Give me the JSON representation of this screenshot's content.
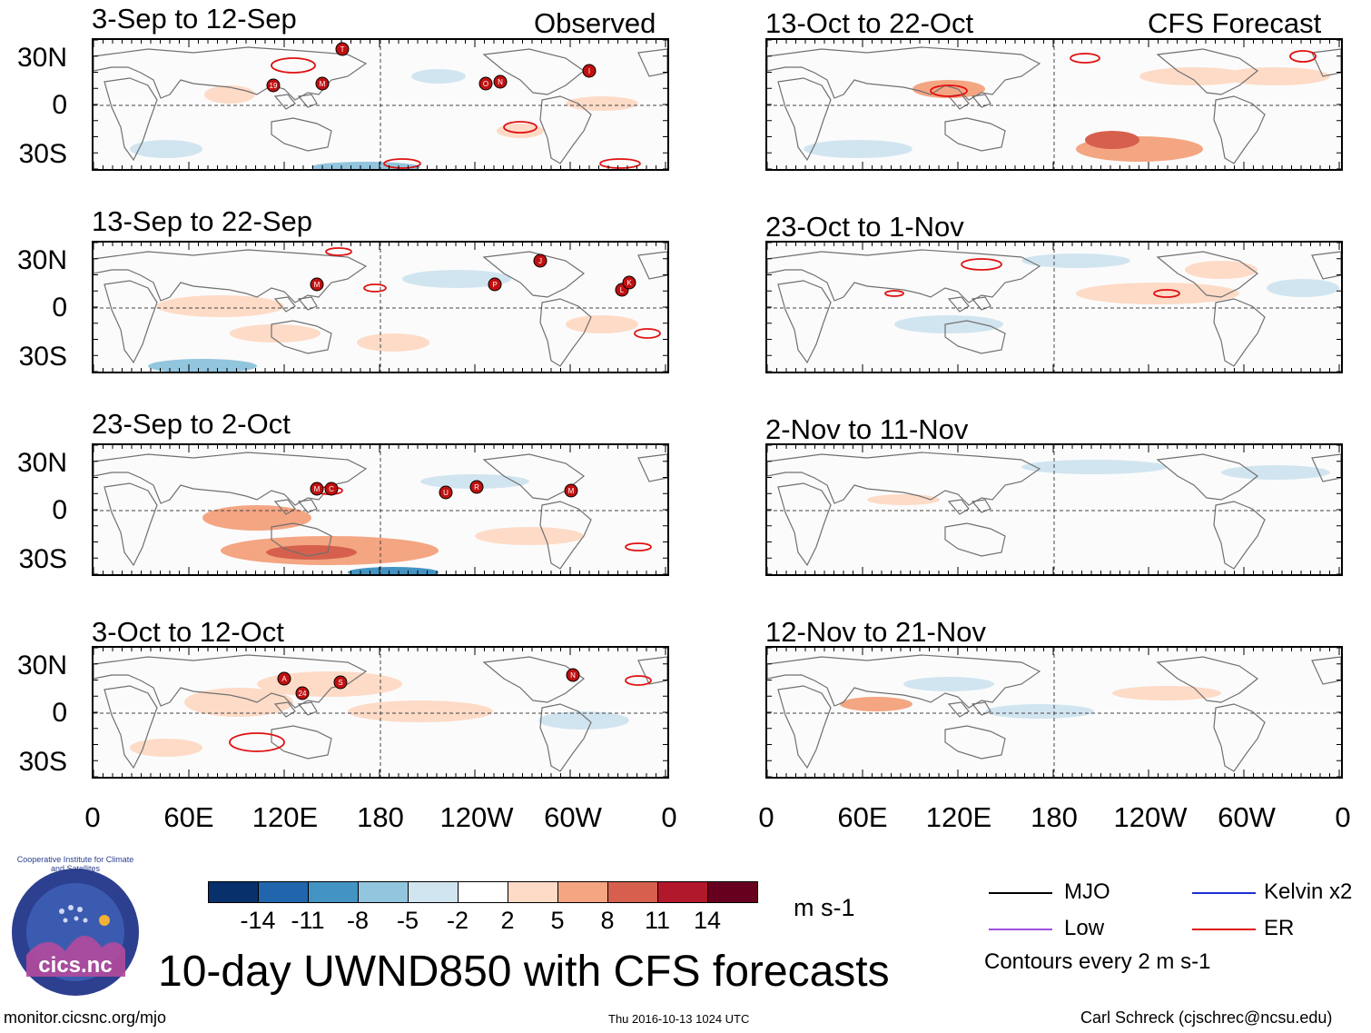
{
  "headers": {
    "observed": "Observed",
    "forecast": "CFS Forecast"
  },
  "panels_left": [
    {
      "title": "3-Sep to 12-Sep"
    },
    {
      "title": "13-Sep to 22-Sep"
    },
    {
      "title": "23-Sep to 2-Oct"
    },
    {
      "title": "3-Oct to 12-Oct"
    }
  ],
  "panels_right": [
    {
      "title": "13-Oct to 22-Oct"
    },
    {
      "title": "23-Oct to 1-Nov"
    },
    {
      "title": "2-Nov to 11-Nov"
    },
    {
      "title": "12-Nov to 21-Nov"
    }
  ],
  "lat_labels": [
    "30N",
    "0",
    "30S"
  ],
  "lon_labels": [
    "0",
    "60E",
    "120E",
    "180",
    "120W",
    "60W",
    "0"
  ],
  "colorbar": {
    "colors": [
      "#08306b",
      "#2166ac",
      "#4393c3",
      "#92c5de",
      "#d1e5f0",
      "#ffffff",
      "#fddbc7",
      "#f4a582",
      "#d6604d",
      "#b2182b",
      "#67001f"
    ],
    "labels": [
      "-14",
      "-11",
      "-8",
      "-5",
      "-2",
      "2",
      "5",
      "8",
      "11",
      "14"
    ],
    "units": "m s-1"
  },
  "legend": {
    "mjo": "MJO",
    "kelvin": "Kelvin x2",
    "low": "Low",
    "er": "ER",
    "contours": "Contours every 2 m s-1",
    "colors": {
      "mjo": "#000000",
      "kelvin": "#1f2fd0",
      "low": "#a050e0",
      "er": "#e01010"
    }
  },
  "title": "10-day UWND850 with CFS forecasts",
  "logo_text": "cics.nc",
  "logo_ring": "Cooperative Institute for Climate and Satellites",
  "footer": {
    "url": "monitor.cicsnc.org/mjo",
    "timestamp": "Thu 2016-10-13 1024 UTC",
    "author": "Carl Schreck (cjschrec@ncsu.edu)"
  },
  "storm_markers": {
    "panel1": [
      "T",
      "19",
      "M",
      "O",
      "N",
      "I"
    ],
    "panel2": [
      "M",
      "P",
      "J",
      "L",
      "K"
    ],
    "panel3": [
      "M",
      "C",
      "U",
      "R",
      "M"
    ],
    "panel4": [
      "A",
      "24",
      "S",
      "N"
    ]
  }
}
